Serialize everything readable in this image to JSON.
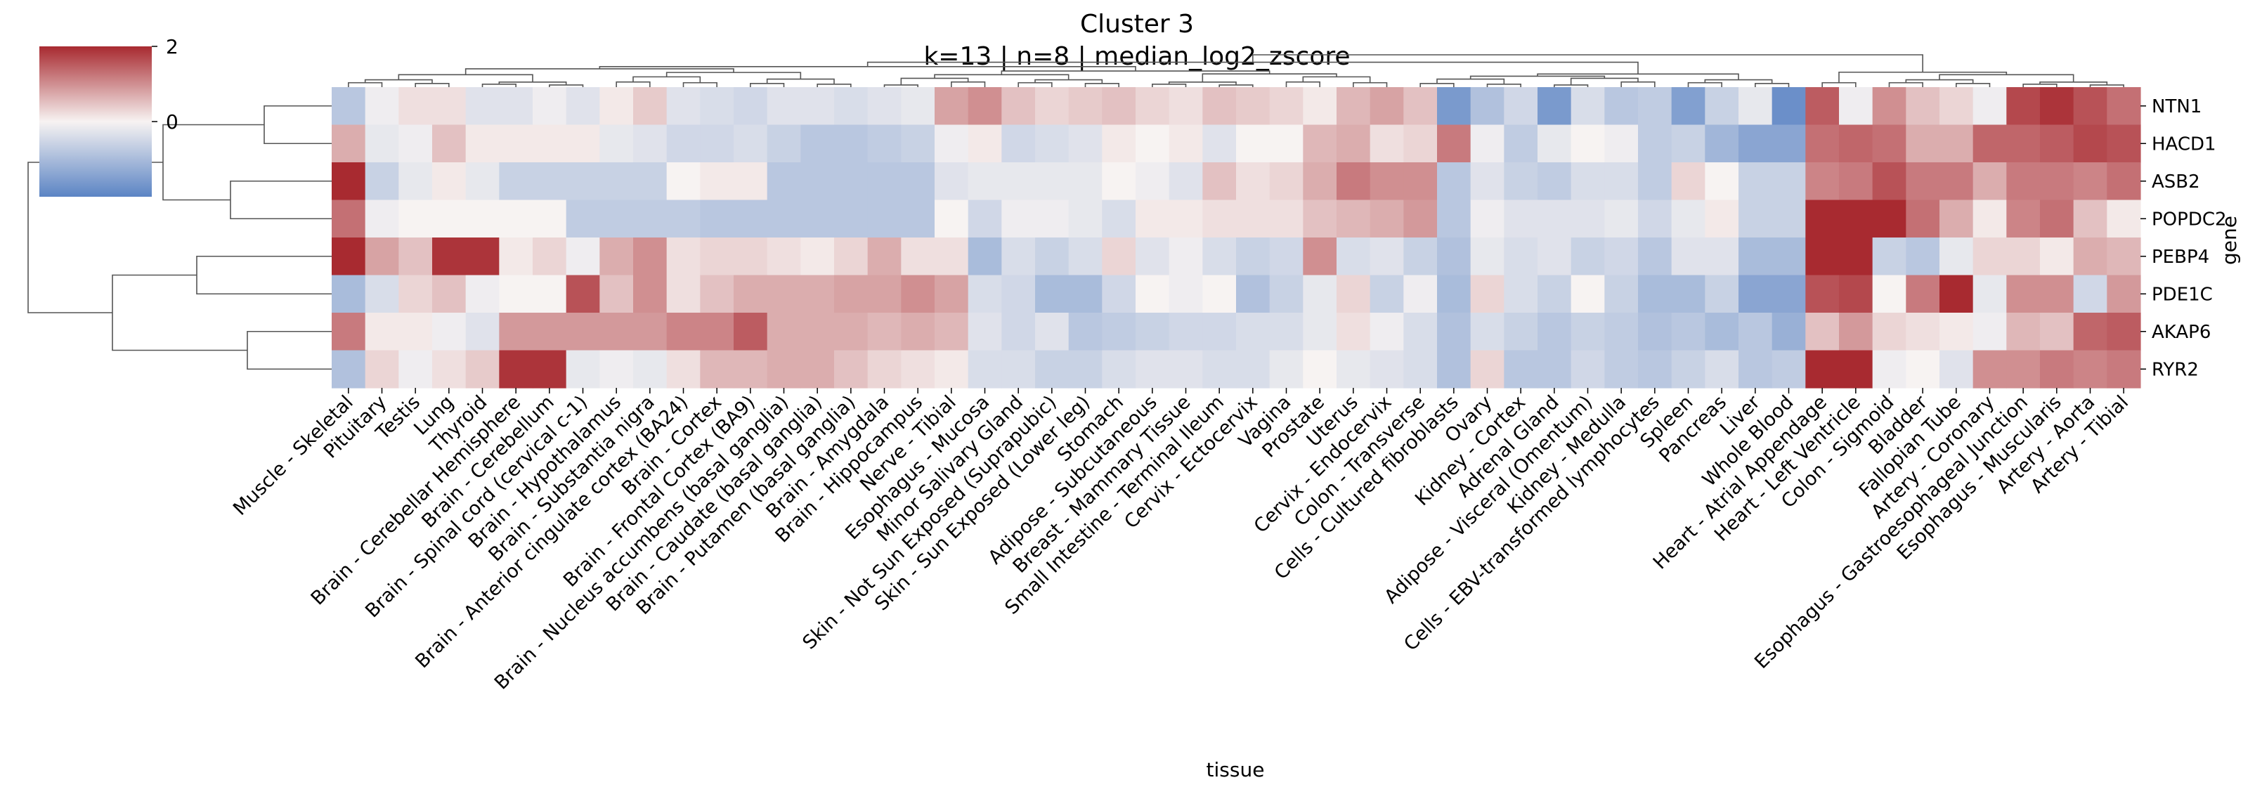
{
  "chart_data": {
    "type": "heatmap",
    "title": "Cluster 3",
    "subtitle": "k=13 | n=8 | median_log2_zscore",
    "xlabel": "tissue",
    "ylabel": "gene",
    "colormap": {
      "name": "vlag",
      "low": "#5b84c4",
      "mid": "#f7f3f2",
      "high": "#a82a30"
    },
    "vmin": -2,
    "vmax": 2,
    "colorbar_ticks": [
      2,
      0
    ],
    "dendrograms": {
      "rows": true,
      "columns": true
    },
    "rows": [
      "NTN1",
      "HACD1",
      "ASB2",
      "POPDC2",
      "PEBP4",
      "PDE1C",
      "AKAP6",
      "RYR2"
    ],
    "columns": [
      "Muscle - Skeletal",
      "Pituitary",
      "Testis",
      "Lung",
      "Thyroid",
      "Brain - Cerebellar Hemisphere",
      "Brain - Cerebellum",
      "Brain - Spinal cord (cervical c-1)",
      "Brain - Hypothalamus",
      "Brain - Substantia nigra",
      "Brain - Anterior cingulate cortex (BA24)",
      "Brain - Cortex",
      "Brain - Frontal Cortex (BA9)",
      "Brain - Nucleus accumbens (basal ganglia)",
      "Brain - Caudate (basal ganglia)",
      "Brain - Putamen (basal ganglia)",
      "Brain - Amygdala",
      "Brain - Hippocampus",
      "Nerve - Tibial",
      "Esophagus - Mucosa",
      "Minor Salivary Gland",
      "Skin - Not Sun Exposed (Suprapubic)",
      "Skin - Sun Exposed (Lower leg)",
      "Stomach",
      "Adipose - Subcutaneous",
      "Breast - Mammary Tissue",
      "Small Intestine - Terminal Ileum",
      "Cervix - Ectocervix",
      "Vagina",
      "Prostate",
      "Uterus",
      "Cervix - Endocervix",
      "Colon - Transverse",
      "Cells - Cultured fibroblasts",
      "Ovary",
      "Kidney - Cortex",
      "Adrenal Gland",
      "Adipose - Visceral (Omentum)",
      "Kidney - Medulla",
      "Cells - EBV-transformed lymphocytes",
      "Spleen",
      "Pancreas",
      "Liver",
      "Whole Blood",
      "Heart - Atrial Appendage",
      "Heart - Left Ventricle",
      "Colon - Sigmoid",
      "Bladder",
      "Fallopian Tube",
      "Artery - Coronary",
      "Esophagus - Gastroesophageal Junction",
      "Esophagus - Muscularis",
      "Artery - Aorta",
      "Artery - Tibial"
    ],
    "values": [
      [
        -0.8,
        -0.1,
        0.2,
        0.2,
        -0.3,
        -0.3,
        -0.1,
        -0.3,
        0.1,
        0.4,
        -0.3,
        -0.4,
        -0.5,
        -0.3,
        -0.3,
        -0.4,
        -0.3,
        -0.2,
        0.8,
        1.0,
        0.5,
        0.3,
        0.4,
        0.5,
        0.3,
        0.2,
        0.5,
        0.4,
        0.3,
        0.1,
        0.6,
        0.8,
        0.5,
        -1.6,
        -0.9,
        -0.5,
        -1.6,
        -0.4,
        -0.8,
        -0.7,
        -1.5,
        -0.6,
        -0.2,
        -1.8,
        1.5,
        -0.1,
        1.0,
        0.5,
        0.3,
        -0.1,
        1.7,
        1.9,
        1.6,
        1.3
      ],
      [
        0.7,
        -0.2,
        -0.1,
        0.5,
        0.1,
        0.1,
        0.1,
        0.1,
        -0.2,
        -0.3,
        -0.5,
        -0.5,
        -0.4,
        -0.6,
        -0.8,
        -0.8,
        -0.7,
        -0.6,
        -0.1,
        0.1,
        -0.5,
        -0.4,
        -0.3,
        0.1,
        0.0,
        0.1,
        -0.3,
        0.0,
        0.0,
        0.6,
        0.7,
        0.2,
        0.3,
        1.2,
        -0.1,
        -0.7,
        -0.2,
        0.0,
        -0.1,
        -0.7,
        -0.6,
        -1.1,
        -1.4,
        -1.4,
        1.3,
        1.4,
        1.3,
        0.7,
        0.7,
        1.4,
        1.4,
        1.5,
        1.7,
        1.6
      ],
      [
        2.0,
        -0.6,
        -0.2,
        0.1,
        -0.2,
        -0.6,
        -0.6,
        -0.6,
        -0.6,
        -0.6,
        0.0,
        0.1,
        0.1,
        -0.8,
        -0.8,
        -0.8,
        -0.8,
        -0.8,
        -0.3,
        -0.2,
        -0.2,
        -0.2,
        -0.2,
        0.0,
        -0.1,
        -0.3,
        0.5,
        0.2,
        0.3,
        0.7,
        1.2,
        1.0,
        1.0,
        -0.8,
        -0.3,
        -0.6,
        -0.7,
        -0.4,
        -0.4,
        -0.7,
        0.3,
        0.0,
        -0.6,
        -0.6,
        1.1,
        1.2,
        1.6,
        1.2,
        1.2,
        0.7,
        1.2,
        1.2,
        1.1,
        1.3
      ],
      [
        1.3,
        -0.1,
        0.0,
        0.0,
        0.0,
        0.0,
        0.0,
        -0.7,
        -0.7,
        -0.7,
        -0.7,
        -0.8,
        -0.8,
        -0.8,
        -0.8,
        -0.8,
        -0.8,
        -0.8,
        0.0,
        -0.5,
        -0.1,
        -0.1,
        -0.2,
        -0.4,
        0.1,
        0.1,
        0.2,
        0.2,
        0.2,
        0.5,
        0.6,
        0.7,
        0.9,
        -0.8,
        -0.1,
        -0.3,
        -0.3,
        -0.3,
        -0.2,
        -0.5,
        -0.2,
        0.1,
        -0.6,
        -0.6,
        2.2,
        2.2,
        2.2,
        1.3,
        0.7,
        0.1,
        1.1,
        1.3,
        0.5,
        0.1
      ],
      [
        2.0,
        0.8,
        0.5,
        1.9,
        1.9,
        0.1,
        0.3,
        -0.1,
        0.7,
        1.0,
        0.2,
        0.3,
        0.3,
        0.2,
        0.1,
        0.3,
        0.7,
        0.2,
        0.2,
        -1.0,
        -0.4,
        -0.6,
        -0.4,
        0.3,
        -0.3,
        -0.1,
        -0.4,
        -0.6,
        -0.5,
        1.0,
        -0.4,
        -0.3,
        -0.6,
        -0.9,
        -0.2,
        -0.4,
        -0.3,
        -0.6,
        -0.5,
        -0.8,
        -0.3,
        -0.3,
        -1.0,
        -1.0,
        2.2,
        2.2,
        -0.6,
        -0.8,
        -0.2,
        0.3,
        0.3,
        0.1,
        0.7,
        0.6
      ],
      [
        -1.0,
        -0.4,
        0.3,
        0.5,
        -0.1,
        0.0,
        0.0,
        1.6,
        0.5,
        1.0,
        0.2,
        0.5,
        0.7,
        0.7,
        0.7,
        0.8,
        0.8,
        1.0,
        0.8,
        -0.4,
        -0.5,
        -1.0,
        -1.0,
        -0.5,
        0.0,
        -0.1,
        0.0,
        -0.9,
        -0.6,
        -0.2,
        0.3,
        -0.6,
        -0.1,
        -1.0,
        0.3,
        -0.4,
        -0.6,
        0.0,
        -0.6,
        -1.0,
        -1.0,
        -0.6,
        -1.4,
        -1.4,
        1.6,
        1.7,
        0.0,
        1.2,
        2.0,
        -0.2,
        1.0,
        1.0,
        -0.5,
        0.9
      ],
      [
        1.2,
        0.1,
        0.1,
        -0.1,
        -0.3,
        0.9,
        0.9,
        0.9,
        0.9,
        0.9,
        1.1,
        1.1,
        1.5,
        0.7,
        0.7,
        0.7,
        0.6,
        0.7,
        0.6,
        -0.3,
        -0.5,
        -0.3,
        -0.8,
        -0.7,
        -0.6,
        -0.5,
        -0.5,
        -0.4,
        -0.4,
        -0.2,
        0.2,
        -0.1,
        -0.4,
        -0.9,
        -0.4,
        -0.6,
        -0.8,
        -0.6,
        -0.7,
        -0.9,
        -0.8,
        -1.0,
        -0.8,
        -1.2,
        0.5,
        0.9,
        0.3,
        0.2,
        0.1,
        -0.1,
        0.6,
        0.5,
        1.4,
        1.5
      ],
      [
        -0.9,
        0.3,
        -0.1,
        0.2,
        0.4,
        1.9,
        1.9,
        -0.2,
        -0.1,
        -0.2,
        0.2,
        0.6,
        0.6,
        0.7,
        0.7,
        0.5,
        0.3,
        0.2,
        0.1,
        -0.4,
        -0.4,
        -0.6,
        -0.6,
        -0.4,
        -0.3,
        -0.3,
        -0.4,
        -0.4,
        -0.2,
        0.0,
        -0.2,
        -0.3,
        -0.4,
        -0.9,
        0.3,
        -0.8,
        -0.8,
        -0.5,
        -0.7,
        -0.8,
        -0.6,
        -0.4,
        -0.8,
        -0.7,
        2.2,
        2.2,
        -0.1,
        0.0,
        -0.3,
        1.0,
        1.0,
        1.2,
        1.1,
        1.2
      ]
    ]
  }
}
